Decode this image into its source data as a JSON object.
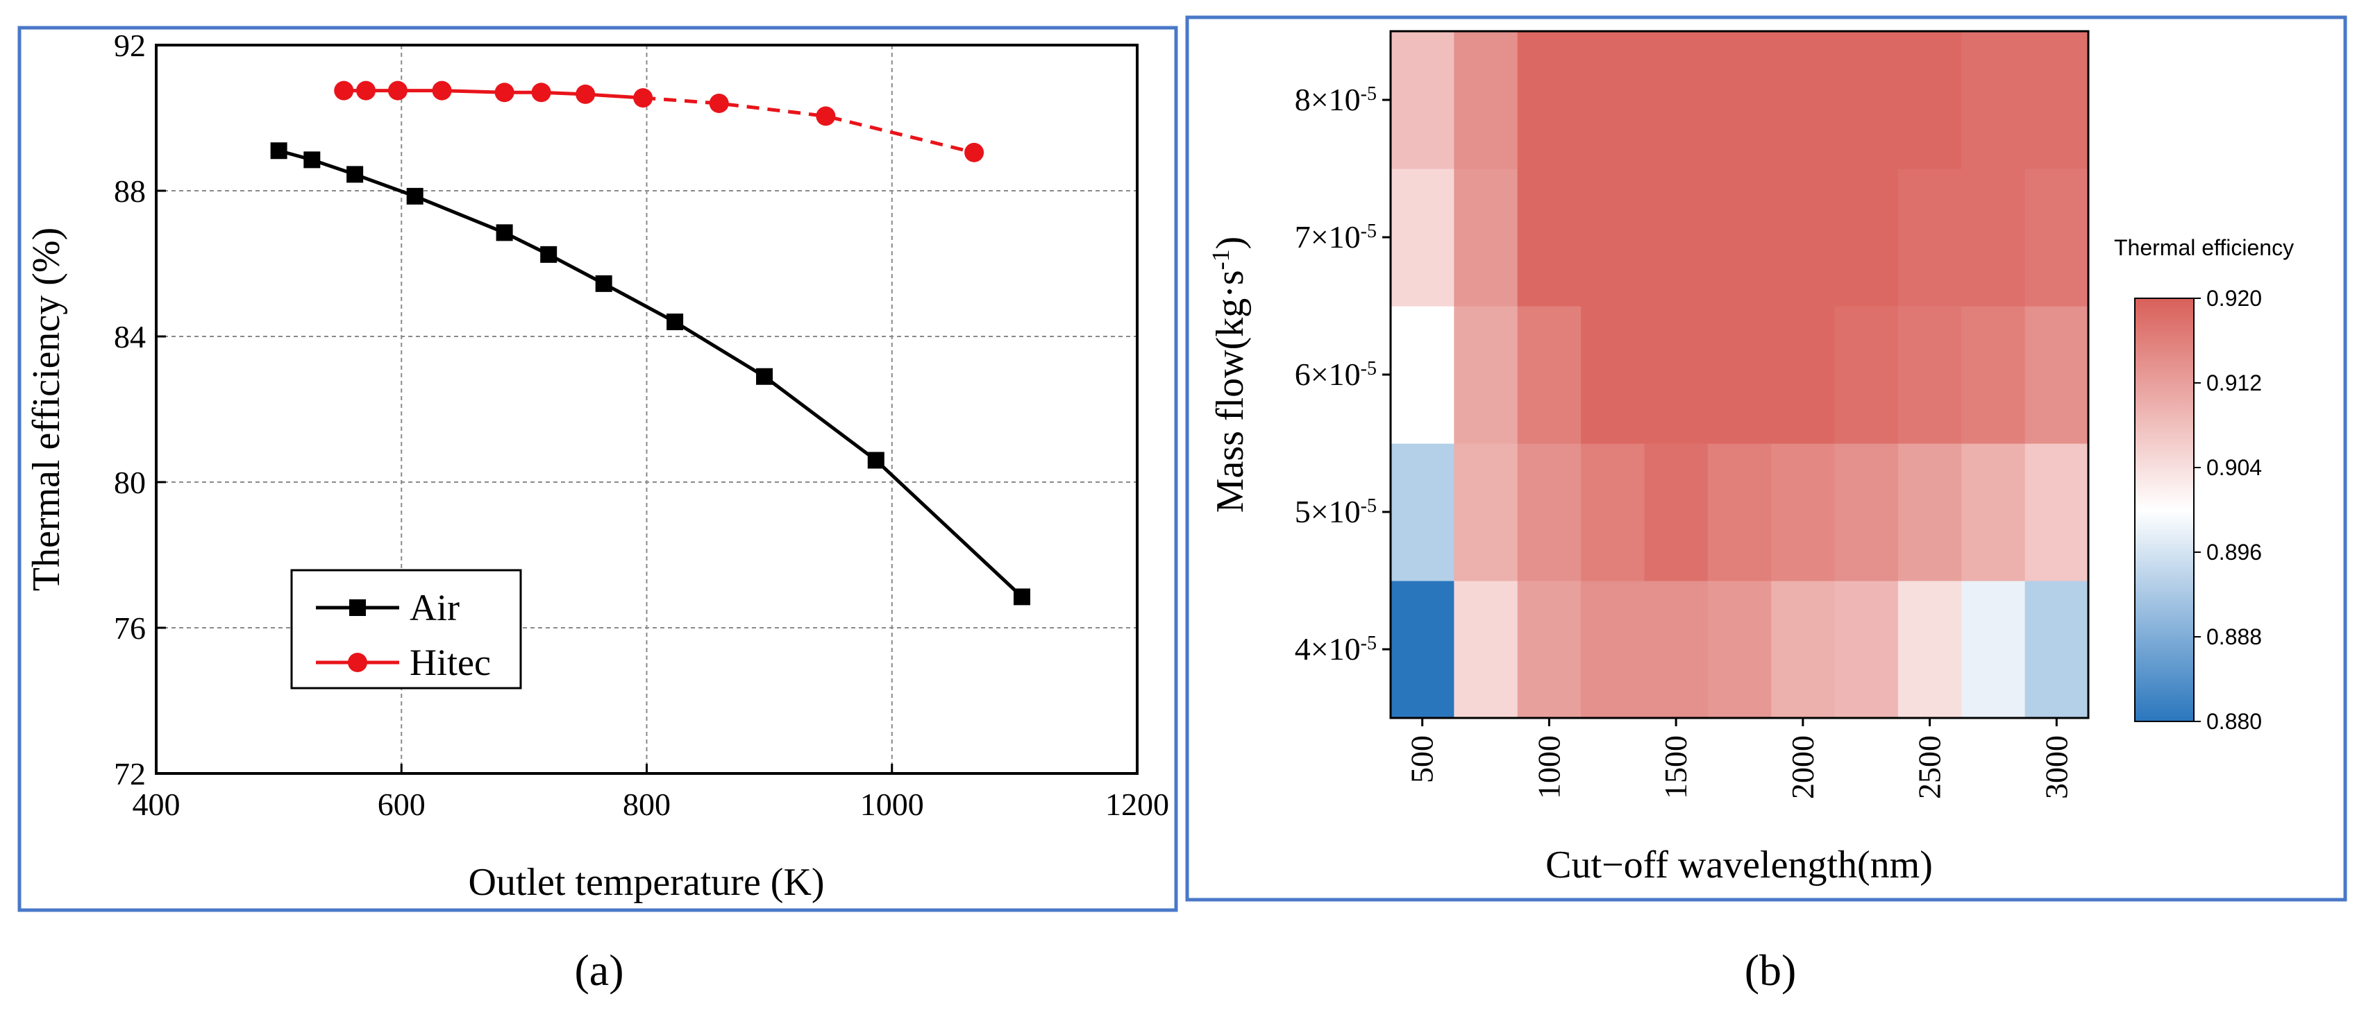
{
  "chart_data": [
    {
      "type": "line",
      "panel_label": "(a)",
      "xlabel": "Outlet temperature (K)",
      "ylabel": "Thermal efficiency (%)",
      "xlim": [
        400,
        1200
      ],
      "ylim": [
        72,
        92
      ],
      "xticks": [
        400,
        600,
        800,
        1000,
        1200
      ],
      "yticks": [
        72,
        76,
        80,
        84,
        88,
        92
      ],
      "grid": true,
      "legend_position": "bottom-left",
      "series": [
        {
          "name": "Air",
          "color": "#000000",
          "marker": "square",
          "linestyle": "solid",
          "x": [
            500,
            527,
            562,
            611,
            684,
            720,
            765,
            823,
            896,
            987,
            1106
          ],
          "y": [
            89.1,
            88.85,
            88.45,
            87.85,
            86.85,
            86.25,
            85.45,
            84.4,
            82.9,
            80.6,
            76.85
          ]
        },
        {
          "name": "Hitec",
          "color": "#e8141a",
          "marker": "circle",
          "linestyle": "solid-then-dashed",
          "x": [
            553,
            571,
            597,
            633,
            684,
            714,
            750,
            797,
            859,
            946,
            1067
          ],
          "y": [
            90.75,
            90.75,
            90.75,
            90.75,
            90.7,
            90.7,
            90.65,
            90.55,
            90.4,
            90.05,
            89.05
          ]
        }
      ]
    },
    {
      "type": "heatmap",
      "panel_label": "(b)",
      "xlabel": "Cut−off wavelength(nm)",
      "ylabel_main": "Mass flow(kg·s",
      "ylabel_sup": "-1",
      "ylabel_close": ")",
      "x": [
        500,
        750,
        1000,
        1250,
        1500,
        1750,
        2000,
        2250,
        2500,
        2750,
        3000
      ],
      "x_tick_labels": [
        "500",
        "1000",
        "1500",
        "2000",
        "2500",
        "3000"
      ],
      "x_tick_values": [
        500,
        1000,
        1500,
        2000,
        2500,
        3000
      ],
      "y_tick_labels": [
        {
          "base": "4×10",
          "exp": "-5"
        },
        {
          "base": "5×10",
          "exp": "-5"
        },
        {
          "base": "6×10",
          "exp": "-5"
        },
        {
          "base": "7×10",
          "exp": "-5"
        },
        {
          "base": "8×10",
          "exp": "-5"
        }
      ],
      "y": [
        4e-05,
        5e-05,
        6e-05,
        7e-05,
        8e-05
      ],
      "values": [
        [
          0.88,
          0.905,
          0.912,
          0.914,
          0.914,
          0.913,
          0.91,
          0.909,
          0.904,
          0.898,
          0.893
        ],
        [
          0.893,
          0.91,
          0.914,
          0.916,
          0.918,
          0.916,
          0.915,
          0.914,
          0.912,
          0.91,
          0.907
        ],
        [
          0.9,
          0.911,
          0.916,
          0.919,
          0.919,
          0.919,
          0.919,
          0.918,
          0.917,
          0.916,
          0.914
        ],
        [
          0.905,
          0.913,
          0.919,
          0.919,
          0.919,
          0.919,
          0.919,
          0.919,
          0.918,
          0.918,
          0.917
        ],
        [
          0.908,
          0.914,
          0.919,
          0.919,
          0.919,
          0.919,
          0.919,
          0.919,
          0.919,
          0.918,
          0.918
        ]
      ],
      "colorbar": {
        "title": "Thermal efficiency",
        "min": 0.88,
        "max": 0.92,
        "ticks": [
          "0.880",
          "0.888",
          "0.896",
          "0.904",
          "0.912",
          "0.920"
        ],
        "low_color": "#2a76bd",
        "mid_color": "#ffffff",
        "high_color": "#d9605a"
      }
    }
  ],
  "colors": {
    "panel_border": "#4a78c8",
    "grid": "#8a8a8a"
  }
}
